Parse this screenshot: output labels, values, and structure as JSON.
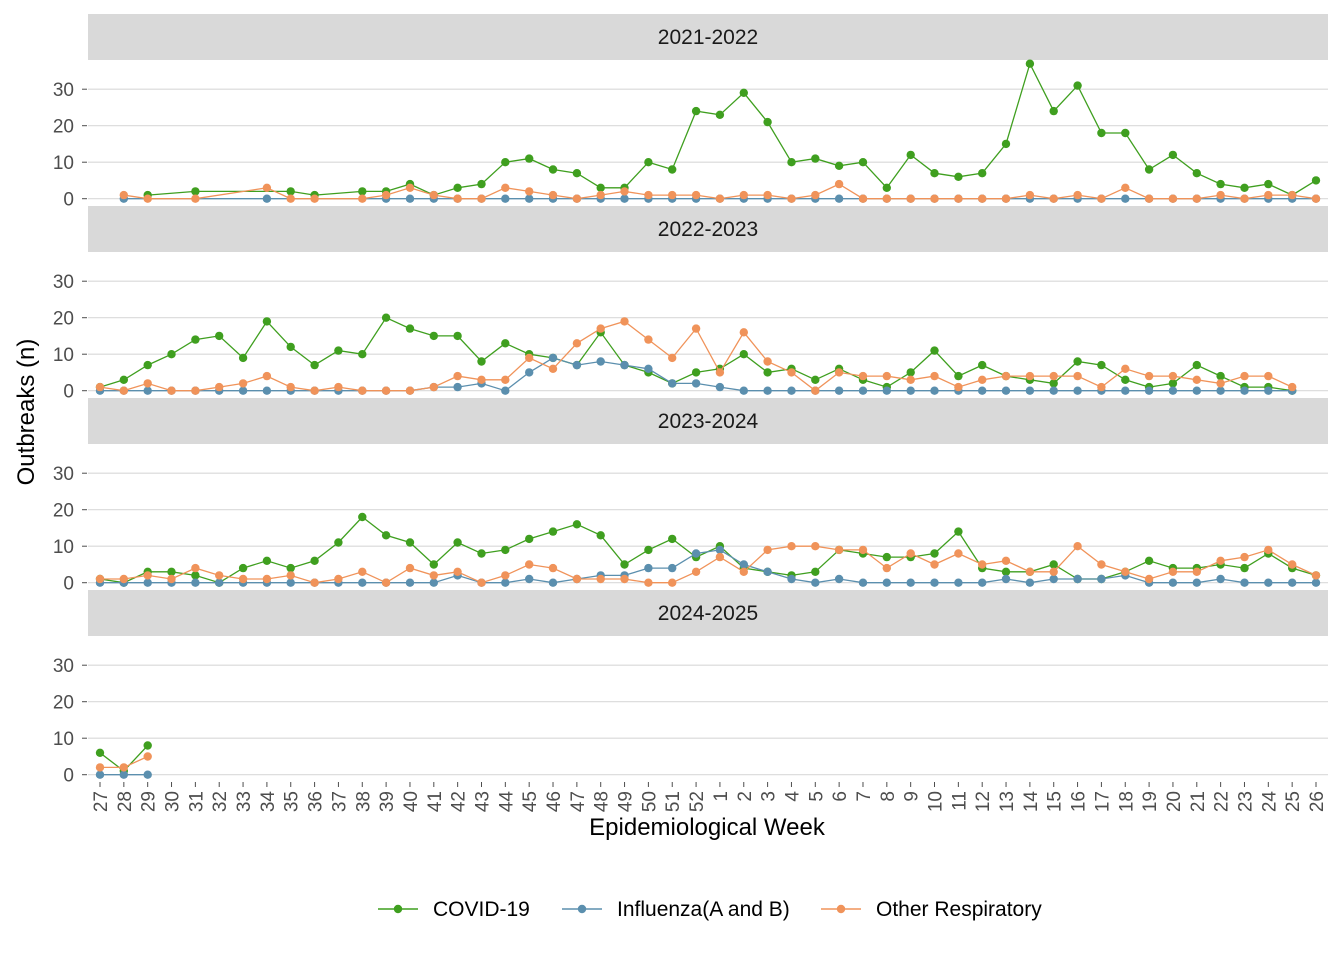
{
  "chart_data": {
    "type": "line",
    "xlabel": "Epidemiological Week",
    "ylabel": "Outbreaks (n)",
    "ylim": [
      -2,
      38
    ],
    "yticks": [
      0,
      10,
      20,
      30
    ],
    "grid": true,
    "legend_position": "bottom",
    "categories": [
      "27",
      "28",
      "29",
      "30",
      "31",
      "32",
      "33",
      "34",
      "35",
      "36",
      "37",
      "38",
      "39",
      "40",
      "41",
      "42",
      "43",
      "44",
      "45",
      "46",
      "47",
      "48",
      "49",
      "50",
      "51",
      "52",
      "1",
      "2",
      "3",
      "4",
      "5",
      "6",
      "7",
      "8",
      "9",
      "10",
      "11",
      "12",
      "13",
      "14",
      "15",
      "16",
      "17",
      "18",
      "19",
      "20",
      "21",
      "22",
      "23",
      "24",
      "25",
      "26"
    ],
    "series_meta": [
      {
        "key": "covid",
        "name": "COVID-19",
        "color": "#3f9f1f"
      },
      {
        "key": "flu",
        "name": "Influenza(A and B)",
        "color": "#5b8fae"
      },
      {
        "key": "other",
        "name": "Other Respiratory",
        "color": "#f0935a"
      }
    ],
    "panels": [
      {
        "label": "2021-2022",
        "series": {
          "covid": [
            null,
            null,
            1,
            null,
            2,
            null,
            null,
            null,
            2,
            1,
            null,
            2,
            2,
            4,
            1,
            3,
            4,
            10,
            11,
            8,
            7,
            3,
            3,
            10,
            8,
            24,
            23,
            29,
            21,
            10,
            11,
            9,
            10,
            3,
            12,
            7,
            6,
            7,
            15,
            37,
            24,
            31,
            18,
            18,
            8,
            12,
            7,
            4,
            3,
            4,
            1,
            5
          ],
          "flu": [
            null,
            0,
            null,
            null,
            null,
            null,
            null,
            0,
            null,
            null,
            null,
            null,
            0,
            0,
            0,
            0,
            0,
            0,
            0,
            0,
            0,
            0,
            0,
            0,
            0,
            0,
            0,
            0,
            0,
            0,
            0,
            0,
            0,
            0,
            0,
            0,
            0,
            0,
            0,
            0,
            0,
            0,
            0,
            0,
            0,
            0,
            0,
            0,
            0,
            0,
            0,
            0
          ],
          "other": [
            null,
            1,
            0,
            null,
            0,
            null,
            null,
            3,
            0,
            0,
            null,
            0,
            1,
            3,
            1,
            0,
            0,
            3,
            2,
            1,
            0,
            1,
            2,
            1,
            1,
            1,
            0,
            1,
            1,
            0,
            1,
            4,
            0,
            0,
            0,
            0,
            0,
            0,
            0,
            1,
            0,
            1,
            0,
            3,
            0,
            0,
            0,
            1,
            0,
            1,
            1,
            0
          ]
        }
      },
      {
        "label": "2022-2023",
        "series": {
          "covid": [
            1,
            3,
            7,
            10,
            14,
            15,
            9,
            19,
            12,
            7,
            11,
            10,
            20,
            17,
            15,
            15,
            8,
            13,
            10,
            9,
            7,
            16,
            7,
            5,
            2,
            5,
            6,
            10,
            5,
            6,
            3,
            6,
            3,
            1,
            5,
            11,
            4,
            7,
            4,
            3,
            2,
            8,
            7,
            3,
            1,
            2,
            7,
            4,
            1,
            1,
            0
          ],
          "flu": [
            0,
            0,
            0,
            0,
            0,
            0,
            0,
            0,
            0,
            0,
            0,
            0,
            0,
            0,
            1,
            1,
            2,
            0,
            5,
            9,
            7,
            8,
            7,
            6,
            2,
            2,
            1,
            0,
            0,
            0,
            0,
            0,
            0,
            0,
            0,
            0,
            0,
            0,
            0,
            0,
            0,
            0,
            0,
            0,
            0,
            0,
            0,
            0,
            0,
            0,
            0
          ],
          "other": [
            1,
            0,
            2,
            0,
            0,
            1,
            2,
            4,
            1,
            0,
            1,
            0,
            0,
            0,
            1,
            4,
            3,
            3,
            9,
            6,
            13,
            17,
            19,
            14,
            9,
            17,
            5,
            16,
            8,
            5,
            0,
            5,
            4,
            4,
            3,
            4,
            1,
            3,
            4,
            4,
            4,
            4,
            1,
            6,
            4,
            4,
            3,
            2,
            4,
            4,
            1
          ]
        }
      },
      {
        "label": "2023-2024",
        "series": {
          "covid": [
            1,
            0,
            3,
            3,
            2,
            0,
            4,
            6,
            4,
            6,
            11,
            18,
            13,
            11,
            5,
            11,
            8,
            9,
            12,
            14,
            16,
            13,
            5,
            9,
            12,
            7,
            10,
            4,
            3,
            2,
            3,
            9,
            8,
            7,
            7,
            8,
            14,
            4,
            3,
            3,
            5,
            1,
            1,
            3,
            6,
            4,
            4,
            5,
            4,
            8,
            4,
            2
          ],
          "flu": [
            0,
            0,
            0,
            0,
            0,
            0,
            0,
            0,
            0,
            0,
            0,
            0,
            0,
            0,
            0,
            2,
            0,
            0,
            1,
            0,
            1,
            2,
            2,
            4,
            4,
            8,
            9,
            5,
            3,
            1,
            0,
            1,
            0,
            0,
            0,
            0,
            0,
            0,
            1,
            0,
            1,
            1,
            1,
            2,
            0,
            0,
            0,
            1,
            0,
            0,
            0,
            0
          ],
          "other": [
            1,
            1,
            2,
            1,
            4,
            2,
            1,
            1,
            2,
            0,
            1,
            3,
            0,
            4,
            2,
            3,
            0,
            2,
            5,
            4,
            1,
            1,
            1,
            0,
            0,
            3,
            7,
            3,
            9,
            10,
            10,
            9,
            9,
            4,
            8,
            5,
            8,
            5,
            6,
            3,
            3,
            10,
            5,
            3,
            1,
            3,
            3,
            6,
            7,
            9,
            5,
            2
          ]
        }
      },
      {
        "label": "2024-2025",
        "series": {
          "covid": [
            6,
            1,
            8
          ],
          "flu": [
            0,
            0,
            0
          ],
          "other": [
            2,
            2,
            5
          ]
        }
      }
    ]
  }
}
